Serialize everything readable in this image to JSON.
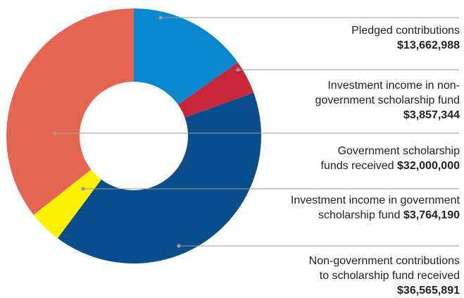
{
  "chart_data": {
    "type": "pie",
    "series": [
      {
        "values": [
          {
            "label_lines": [
              "Pledged contributions"
            ],
            "amount": "$13,662,988",
            "value": 13662988,
            "color": "#0a88cf"
          },
          {
            "label_lines": [
              "Investment income in non-",
              "government scholarship fund"
            ],
            "amount": "$3,857,344",
            "value": 3857344,
            "color": "#c8263a"
          },
          {
            "label_lines": [
              "Non-government contributions",
              "to scholarship fund received"
            ],
            "amount": "$36,565,891",
            "value": 36565891,
            "color": "#0a4d8c"
          },
          {
            "label_lines": [
              "Investment income in government",
              "scholarship fund"
            ],
            "amount": "$3,764,190",
            "value": 3764190,
            "color": "#fff200"
          },
          {
            "label_lines": [
              "Government scholarship",
              "funds received"
            ],
            "amount": "$32,000,000",
            "value": 32000000,
            "color": "#e66552"
          }
        ]
      }
    ],
    "legend": "right"
  }
}
